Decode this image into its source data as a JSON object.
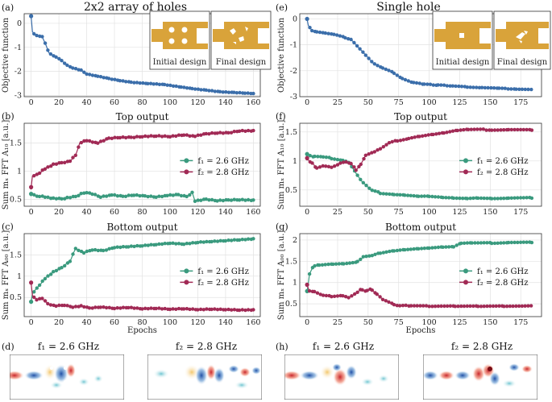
{
  "colors": {
    "blue": "#3b6eaa",
    "teal": "#3a9a7e",
    "maroon": "#a12a55",
    "gold": "#d9a33a"
  },
  "titles": {
    "left": "2x2 array of holes",
    "right": "Single hole"
  },
  "insets": {
    "left": {
      "initial": "Initial design",
      "final": "Final design"
    },
    "right": {
      "initial": "Initial design",
      "final": "Final design"
    }
  },
  "fields": {
    "left": {
      "f1": "f₁ = 2.6 GHz",
      "f2": "f₂ = 2.8 GHz"
    },
    "right": {
      "f1": "f₁ = 2.6 GHz",
      "f2": "f₂ = 2.8 GHz"
    }
  },
  "chart_data": [
    {
      "type": "line",
      "panel": "(a)",
      "title": "",
      "xlabel": "",
      "ylabel": "Objective function",
      "xlim": [
        -5,
        165
      ],
      "ylim": [
        -3.05,
        0.4
      ],
      "xticks": [
        0,
        20,
        40,
        60,
        80,
        100,
        120,
        140,
        160
      ],
      "yticks": [
        -3,
        -2,
        -1,
        0
      ],
      "series": [
        {
          "name": "objective",
          "color": "blue",
          "points": [
            [
              0,
              0.3
            ],
            [
              1,
              -0.35
            ],
            [
              3,
              -0.5
            ],
            [
              8,
              -0.55
            ],
            [
              11,
              -0.95
            ],
            [
              13,
              -1.25
            ],
            [
              18,
              -1.4
            ],
            [
              22,
              -1.55
            ],
            [
              26,
              -1.75
            ],
            [
              30,
              -1.85
            ],
            [
              36,
              -1.95
            ],
            [
              40,
              -2.1
            ],
            [
              48,
              -2.2
            ],
            [
              56,
              -2.3
            ],
            [
              64,
              -2.38
            ],
            [
              72,
              -2.45
            ],
            [
              84,
              -2.5
            ],
            [
              96,
              -2.55
            ],
            [
              108,
              -2.65
            ],
            [
              116,
              -2.72
            ],
            [
              126,
              -2.78
            ],
            [
              136,
              -2.85
            ],
            [
              146,
              -2.88
            ],
            [
              154,
              -2.9
            ],
            [
              160,
              -2.92
            ]
          ]
        }
      ]
    },
    {
      "type": "line",
      "panel": "(b)",
      "title": "Top output",
      "xlabel": "",
      "ylabel": "Sum mₓ FFT A₁₀ [a.u.]",
      "xlim": [
        -5,
        165
      ],
      "ylim": [
        0.38,
        1.85
      ],
      "xticks": [
        0,
        20,
        40,
        60,
        80,
        100,
        120,
        140,
        160
      ],
      "yticks": [
        0.5,
        1.0,
        1.5
      ],
      "series": [
        {
          "name": "f₁ = 2.6 GHz",
          "color": "teal",
          "points": [
            [
              0,
              0.6
            ],
            [
              5,
              0.56
            ],
            [
              10,
              0.55
            ],
            [
              16,
              0.52
            ],
            [
              22,
              0.51
            ],
            [
              26,
              0.53
            ],
            [
              32,
              0.55
            ],
            [
              36,
              0.6
            ],
            [
              40,
              0.63
            ],
            [
              44,
              0.6
            ],
            [
              50,
              0.55
            ],
            [
              58,
              0.58
            ],
            [
              66,
              0.55
            ],
            [
              74,
              0.58
            ],
            [
              82,
              0.56
            ],
            [
              90,
              0.55
            ],
            [
              98,
              0.57
            ],
            [
              106,
              0.58
            ],
            [
              112,
              0.55
            ],
            [
              116,
              0.62
            ],
            [
              118,
              0.47
            ],
            [
              126,
              0.5
            ],
            [
              134,
              0.48
            ],
            [
              142,
              0.49
            ],
            [
              150,
              0.5
            ],
            [
              160,
              0.49
            ]
          ]
        },
        {
          "name": "f₂ = 2.8 GHz",
          "color": "maroon",
          "points": [
            [
              0,
              0.72
            ],
            [
              1,
              0.92
            ],
            [
              5,
              0.95
            ],
            [
              10,
              1.05
            ],
            [
              16,
              1.12
            ],
            [
              22,
              1.15
            ],
            [
              28,
              1.18
            ],
            [
              32,
              1.28
            ],
            [
              35,
              1.5
            ],
            [
              40,
              1.55
            ],
            [
              48,
              1.5
            ],
            [
              56,
              1.58
            ],
            [
              64,
              1.6
            ],
            [
              72,
              1.6
            ],
            [
              80,
              1.62
            ],
            [
              90,
              1.63
            ],
            [
              100,
              1.62
            ],
            [
              110,
              1.65
            ],
            [
              118,
              1.62
            ],
            [
              126,
              1.66
            ],
            [
              134,
              1.68
            ],
            [
              142,
              1.68
            ],
            [
              150,
              1.72
            ],
            [
              160,
              1.72
            ]
          ]
        }
      ]
    },
    {
      "type": "line",
      "panel": "(c)",
      "title": "Bottom output",
      "xlabel": "Epochs",
      "ylabel": "Sum mₓ FFT A₀₀ [a.u.]",
      "xlim": [
        -5,
        165
      ],
      "ylim": [
        0.05,
        2.0
      ],
      "xticks": [
        0,
        20,
        40,
        60,
        80,
        100,
        120,
        140,
        160
      ],
      "yticks": [
        0.5,
        1.0,
        1.5
      ],
      "series": [
        {
          "name": "f₁ = 2.6 GHz",
          "color": "teal",
          "points": [
            [
              0,
              0.4
            ],
            [
              1,
              0.6
            ],
            [
              5,
              0.75
            ],
            [
              10,
              0.95
            ],
            [
              16,
              1.1
            ],
            [
              22,
              1.2
            ],
            [
              28,
              1.35
            ],
            [
              32,
              1.65
            ],
            [
              38,
              1.55
            ],
            [
              44,
              1.62
            ],
            [
              52,
              1.6
            ],
            [
              60,
              1.68
            ],
            [
              70,
              1.7
            ],
            [
              80,
              1.72
            ],
            [
              90,
              1.75
            ],
            [
              100,
              1.78
            ],
            [
              110,
              1.76
            ],
            [
              120,
              1.8
            ],
            [
              130,
              1.82
            ],
            [
              140,
              1.84
            ],
            [
              150,
              1.86
            ],
            [
              160,
              1.88
            ]
          ]
        },
        {
          "name": "f₂ = 2.8 GHz",
          "color": "maroon",
          "points": [
            [
              0,
              0.85
            ],
            [
              1,
              0.55
            ],
            [
              4,
              0.45
            ],
            [
              8,
              0.48
            ],
            [
              12,
              0.35
            ],
            [
              18,
              0.3
            ],
            [
              24,
              0.32
            ],
            [
              30,
              0.28
            ],
            [
              36,
              0.3
            ],
            [
              42,
              0.25
            ],
            [
              50,
              0.28
            ],
            [
              60,
              0.25
            ],
            [
              70,
              0.27
            ],
            [
              80,
              0.24
            ],
            [
              90,
              0.25
            ],
            [
              100,
              0.23
            ],
            [
              110,
              0.24
            ],
            [
              120,
              0.22
            ],
            [
              130,
              0.23
            ],
            [
              140,
              0.22
            ],
            [
              150,
              0.21
            ],
            [
              160,
              0.21
            ]
          ]
        }
      ]
    },
    {
      "type": "line",
      "panel": "(e)",
      "title": "",
      "xlabel": "",
      "ylabel": "Objective function",
      "xlim": [
        -6,
        192
      ],
      "ylim": [
        -3.0,
        0.2
      ],
      "xticks": [
        0,
        25,
        50,
        75,
        100,
        125,
        150,
        175
      ],
      "yticks": [
        -3,
        -2,
        -1,
        0
      ],
      "series": [
        {
          "name": "objective",
          "color": "blue",
          "points": [
            [
              0,
              0.0
            ],
            [
              1,
              -0.25
            ],
            [
              4,
              -0.45
            ],
            [
              8,
              -0.5
            ],
            [
              15,
              -0.55
            ],
            [
              22,
              -0.6
            ],
            [
              30,
              -0.7
            ],
            [
              36,
              -0.8
            ],
            [
              42,
              -1.1
            ],
            [
              48,
              -1.4
            ],
            [
              54,
              -1.7
            ],
            [
              62,
              -1.9
            ],
            [
              70,
              -2.05
            ],
            [
              78,
              -2.3
            ],
            [
              86,
              -2.45
            ],
            [
              96,
              -2.52
            ],
            [
              106,
              -2.55
            ],
            [
              118,
              -2.58
            ],
            [
              130,
              -2.62
            ],
            [
              142,
              -2.65
            ],
            [
              156,
              -2.68
            ],
            [
              170,
              -2.7
            ],
            [
              184,
              -2.72
            ]
          ]
        }
      ]
    },
    {
      "type": "line",
      "panel": "(f)",
      "title": "Top output",
      "xlabel": "",
      "ylabel": "Sum mₓ FFT A₁₀ [a.u.]",
      "xlim": [
        -6,
        192
      ],
      "ylim": [
        0.22,
        1.65
      ],
      "xticks": [
        0,
        25,
        50,
        75,
        100,
        125,
        150,
        175
      ],
      "yticks": [
        0.5,
        1.0,
        1.5
      ],
      "series": [
        {
          "name": "f₁ = 2.6 GHz",
          "color": "teal",
          "points": [
            [
              0,
              1.12
            ],
            [
              5,
              1.08
            ],
            [
              12,
              1.07
            ],
            [
              20,
              1.05
            ],
            [
              28,
              1.02
            ],
            [
              34,
              0.98
            ],
            [
              40,
              0.8
            ],
            [
              46,
              0.62
            ],
            [
              52,
              0.5
            ],
            [
              60,
              0.45
            ],
            [
              70,
              0.43
            ],
            [
              80,
              0.42
            ],
            [
              90,
              0.4
            ],
            [
              100,
              0.4
            ],
            [
              110,
              0.38
            ],
            [
              120,
              0.37
            ],
            [
              130,
              0.36
            ],
            [
              140,
              0.37
            ],
            [
              150,
              0.36
            ],
            [
              165,
              0.36
            ],
            [
              184,
              0.36
            ]
          ]
        },
        {
          "name": "f₂ = 2.8 GHz",
          "color": "maroon",
          "points": [
            [
              0,
              1.05
            ],
            [
              3,
              0.98
            ],
            [
              8,
              0.88
            ],
            [
              14,
              0.92
            ],
            [
              20,
              0.9
            ],
            [
              26,
              0.95
            ],
            [
              32,
              0.98
            ],
            [
              36,
              0.95
            ],
            [
              40,
              0.85
            ],
            [
              44,
              0.95
            ],
            [
              48,
              1.1
            ],
            [
              54,
              1.15
            ],
            [
              60,
              1.22
            ],
            [
              66,
              1.3
            ],
            [
              74,
              1.35
            ],
            [
              82,
              1.38
            ],
            [
              92,
              1.42
            ],
            [
              102,
              1.45
            ],
            [
              112,
              1.48
            ],
            [
              122,
              1.52
            ],
            [
              132,
              1.54
            ],
            [
              150,
              1.54
            ],
            [
              165,
              1.54
            ],
            [
              184,
              1.53
            ]
          ]
        }
      ]
    },
    {
      "type": "line",
      "panel": "(g)",
      "title": "Bottom output",
      "xlabel": "Epochs",
      "ylabel": "Sum mₓ FFT A₀₀ [a.u.]",
      "xlim": [
        -6,
        192
      ],
      "ylim": [
        0.2,
        2.15
      ],
      "xticks": [
        0,
        25,
        50,
        75,
        100,
        125,
        150,
        175
      ],
      "yticks": [
        0.5,
        1.0,
        1.5,
        2.0
      ],
      "series": [
        {
          "name": "f₁ = 2.6 GHz",
          "color": "teal",
          "points": [
            [
              0,
              0.8
            ],
            [
              2,
              1.2
            ],
            [
              5,
              1.38
            ],
            [
              10,
              1.42
            ],
            [
              20,
              1.44
            ],
            [
              30,
              1.45
            ],
            [
              40,
              1.48
            ],
            [
              46,
              1.6
            ],
            [
              52,
              1.62
            ],
            [
              60,
              1.7
            ],
            [
              70,
              1.75
            ],
            [
              80,
              1.78
            ],
            [
              90,
              1.8
            ],
            [
              100,
              1.82
            ],
            [
              110,
              1.84
            ],
            [
              120,
              1.85
            ],
            [
              125,
              1.92
            ],
            [
              135,
              1.93
            ],
            [
              150,
              1.93
            ],
            [
              165,
              1.94
            ],
            [
              184,
              1.94
            ]
          ]
        },
        {
          "name": "f₂ = 2.8 GHz",
          "color": "maroon",
          "points": [
            [
              0,
              0.95
            ],
            [
              2,
              0.8
            ],
            [
              6,
              0.78
            ],
            [
              12,
              0.7
            ],
            [
              20,
              0.68
            ],
            [
              28,
              0.7
            ],
            [
              34,
              0.65
            ],
            [
              40,
              0.75
            ],
            [
              44,
              0.85
            ],
            [
              48,
              0.8
            ],
            [
              52,
              0.85
            ],
            [
              56,
              0.75
            ],
            [
              62,
              0.6
            ],
            [
              70,
              0.5
            ],
            [
              76,
              0.45
            ],
            [
              84,
              0.46
            ],
            [
              100,
              0.45
            ],
            [
              120,
              0.45
            ],
            [
              140,
              0.45
            ],
            [
              160,
              0.45
            ],
            [
              184,
              0.45
            ]
          ]
        }
      ]
    }
  ]
}
